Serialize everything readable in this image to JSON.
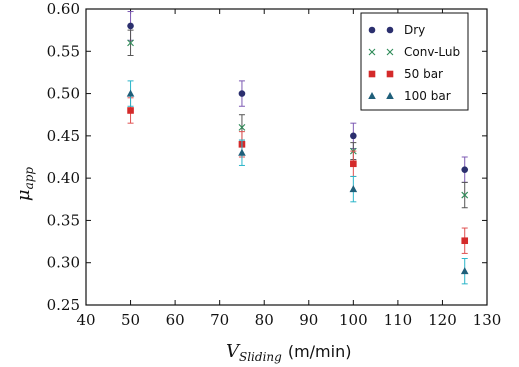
{
  "chart_data": {
    "type": "scatter",
    "x_label_main": "V",
    "x_label_sub": "Sliding",
    "x_label_unit": "(m/min)",
    "y_label_main": "μ",
    "y_label_sub": "app",
    "xlim": [
      40,
      130
    ],
    "ylim": [
      0.25,
      0.6
    ],
    "x_ticks": [
      "40",
      "50",
      "60",
      "70",
      "80",
      "90",
      "100",
      "110",
      "120",
      "130"
    ],
    "y_ticks": [
      "0.25",
      "0.30",
      "0.35",
      "0.40",
      "0.45",
      "0.50",
      "0.55",
      "0.60"
    ],
    "grid": false,
    "legend_position": "top-right",
    "series": [
      {
        "name": "Dry",
        "marker": "circle",
        "color": "#2b2f6e",
        "err_color": "#7c59b3",
        "points": [
          {
            "x": 50,
            "y": 0.58,
            "err": 0.017
          },
          {
            "x": 75,
            "y": 0.5,
            "err": 0.015
          },
          {
            "x": 100,
            "y": 0.45,
            "err": 0.015
          },
          {
            "x": 125,
            "y": 0.41,
            "err": 0.015
          }
        ]
      },
      {
        "name": "Conv-Lub",
        "marker": "x",
        "color": "#2e8b57",
        "err_color": "#555555",
        "points": [
          {
            "x": 50,
            "y": 0.56,
            "err": 0.015
          },
          {
            "x": 75,
            "y": 0.46,
            "err": 0.015
          },
          {
            "x": 100,
            "y": 0.432,
            "err": 0.01
          },
          {
            "x": 125,
            "y": 0.38,
            "err": 0.015
          }
        ]
      },
      {
        "name": "50 bar",
        "marker": "square",
        "color": "#d42a2a",
        "err_color": "#e05050",
        "points": [
          {
            "x": 50,
            "y": 0.48,
            "err": 0.015
          },
          {
            "x": 75,
            "y": 0.44,
            "err": 0.015
          },
          {
            "x": 100,
            "y": 0.417,
            "err": 0.015
          },
          {
            "x": 125,
            "y": 0.326,
            "err": 0.015
          }
        ]
      },
      {
        "name": "100 bar",
        "marker": "triangle",
        "color": "#1f5f7a",
        "err_color": "#2ab5c9",
        "points": [
          {
            "x": 50,
            "y": 0.5,
            "err": 0.015
          },
          {
            "x": 75,
            "y": 0.43,
            "err": 0.015
          },
          {
            "x": 100,
            "y": 0.387,
            "err": 0.015
          },
          {
            "x": 125,
            "y": 0.29,
            "err": 0.015
          }
        ]
      }
    ]
  }
}
